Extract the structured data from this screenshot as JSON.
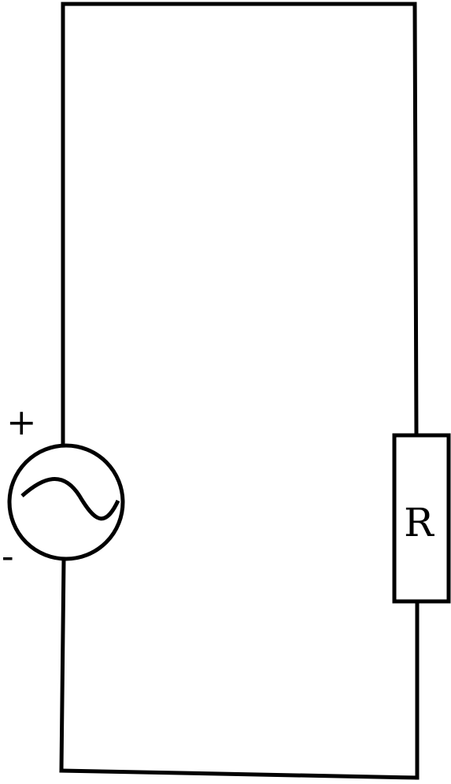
{
  "diagram": {
    "components": {
      "source": {
        "icon": "ac-source-icon",
        "positive_label": "+",
        "negative_label": "-"
      },
      "resistor": {
        "icon": "resistor-icon",
        "label": "R"
      }
    },
    "colors": {
      "stroke": "#000000",
      "background": "#ffffff"
    }
  }
}
